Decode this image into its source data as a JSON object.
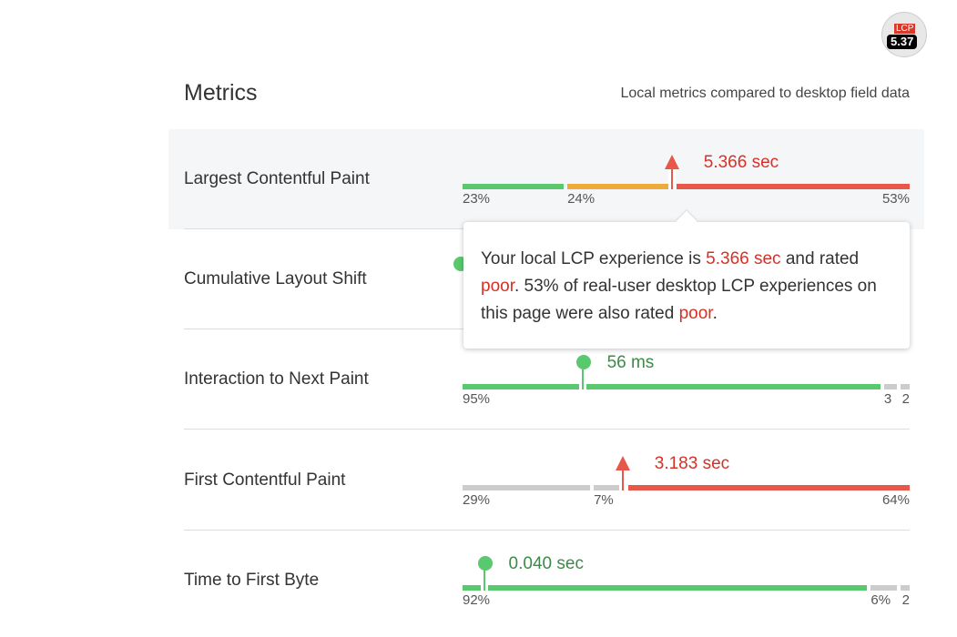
{
  "badge": {
    "label": "LCP",
    "value": "5.37"
  },
  "header": {
    "title": "Metrics",
    "subtitle": "Local metrics compared to desktop field data"
  },
  "colors": {
    "good": "#5ac86e",
    "ni": "#eeaa3a",
    "poor": "#e8584a",
    "na": "#cccccc",
    "poor_text": "#d93025",
    "good_text": "#3c8a47"
  },
  "metrics": [
    {
      "name": "Largest Contentful Paint",
      "value": "5.366 sec",
      "rating": "poor",
      "marker_percent": 47,
      "segments": [
        {
          "label": "23%",
          "pct": 23,
          "color": "good"
        },
        {
          "label": "24%",
          "pct": 24,
          "color": "ni"
        },
        {
          "label": "53%",
          "pct": 53,
          "color": "poor"
        }
      ]
    },
    {
      "name": "Cumulative Layout Shift",
      "value": "",
      "rating": "good",
      "marker_percent": 0,
      "segments": []
    },
    {
      "name": "Interaction to Next Paint",
      "value": "56 ms",
      "rating": "good",
      "marker_percent": 27,
      "segments": [
        {
          "label": "95%",
          "pct": 95,
          "color": "good"
        },
        {
          "label": "3",
          "pct": 3,
          "color": "na"
        },
        {
          "label": "2",
          "pct": 2,
          "color": "na"
        }
      ]
    },
    {
      "name": "First Contentful Paint",
      "value": "3.183 sec",
      "rating": "poor",
      "marker_percent": 36,
      "segments": [
        {
          "label": "29%",
          "pct": 29,
          "color": "na"
        },
        {
          "label": "7%",
          "pct": 7,
          "color": "na"
        },
        {
          "label": "64%",
          "pct": 64,
          "color": "poor"
        }
      ]
    },
    {
      "name": "Time to First Byte",
      "value": "0.040 sec",
      "rating": "good",
      "marker_percent": 5,
      "segments": [
        {
          "label": "92%",
          "pct": 92,
          "color": "good"
        },
        {
          "label": "6%",
          "pct": 6,
          "color": "na"
        },
        {
          "label": "2",
          "pct": 2,
          "color": "na"
        }
      ]
    }
  ],
  "tooltip": {
    "p1": "Your local LCP experience is ",
    "v1": "5.366 sec",
    "p2": " and rated ",
    "v2": "poor",
    "p3": ". 53% of real-user desktop LCP experiences on this page were also rated ",
    "v3": "poor",
    "p4": "."
  }
}
